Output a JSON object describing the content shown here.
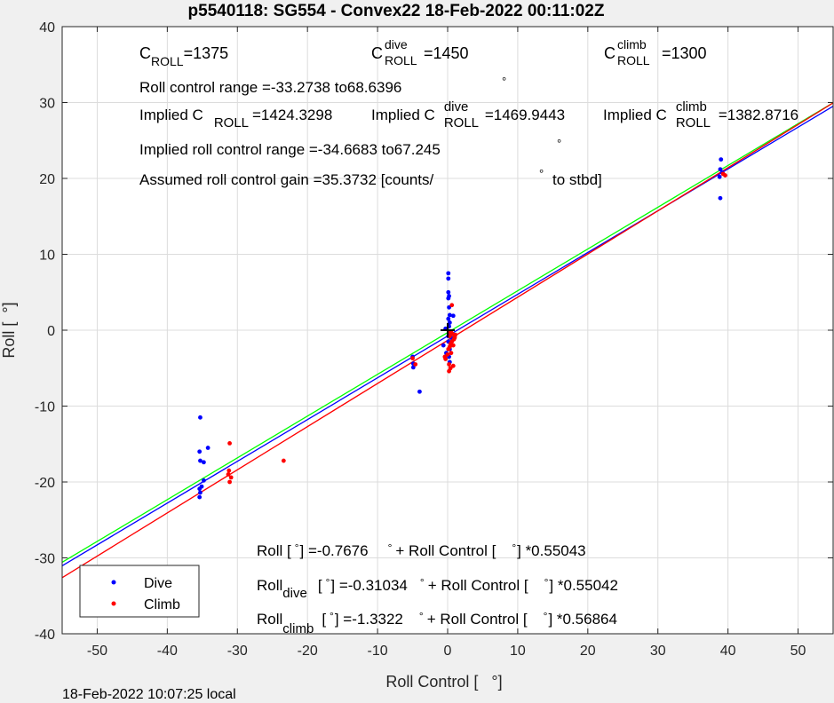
{
  "chart_data": {
    "type": "scatter",
    "title": "p5540118: SG554 - Convex22 18-Feb-2022 00:11:02Z",
    "xlabel": "Roll Control [   °]",
    "ylabel": "Roll [  °]",
    "xlim": [
      -55,
      55
    ],
    "ylim": [
      -40,
      40
    ],
    "xticks": [
      -50,
      -40,
      -30,
      -20,
      -10,
      0,
      10,
      20,
      30,
      40,
      50
    ],
    "yticks": [
      -40,
      -30,
      -20,
      -10,
      0,
      10,
      20,
      30,
      40
    ],
    "grid": true,
    "legend_position": "bottom-left",
    "series": [
      {
        "name": "Dive",
        "color": "#0000ff",
        "points": [
          [
            -35.3,
            -11.5
          ],
          [
            -35.4,
            -16.0
          ],
          [
            -35.3,
            -17.2
          ],
          [
            -34.8,
            -17.4
          ],
          [
            -34.2,
            -15.5
          ],
          [
            -34.8,
            -19.8
          ],
          [
            -35.1,
            -20.6
          ],
          [
            -35.4,
            -20.9
          ],
          [
            -35.3,
            -21.4
          ],
          [
            -35.4,
            -22.0
          ],
          [
            -5.0,
            -3.5
          ],
          [
            -4.9,
            -4.4
          ],
          [
            -4.9,
            -4.9
          ],
          [
            -4.0,
            -8.1
          ],
          [
            -0.6,
            -2.0
          ],
          [
            -0.2,
            -3.0
          ],
          [
            0.1,
            7.5
          ],
          [
            0.1,
            6.8
          ],
          [
            0.1,
            5.0
          ],
          [
            0.2,
            4.5
          ],
          [
            0.1,
            4.2
          ],
          [
            0.2,
            3.0
          ],
          [
            0.3,
            2.0
          ],
          [
            0.1,
            1.5
          ],
          [
            0.3,
            1.0
          ],
          [
            0.2,
            0.5
          ],
          [
            0.2,
            -0.5
          ],
          [
            0.1,
            -1.5
          ],
          [
            0.3,
            -2.5
          ],
          [
            0.2,
            -3.5
          ],
          [
            0.3,
            -4.2
          ],
          [
            0.8,
            1.9
          ],
          [
            -0.3,
            0.2
          ],
          [
            0.1,
            -0.8
          ],
          [
            0.5,
            -1.0
          ],
          [
            38.8,
            20.2
          ],
          [
            38.9,
            21.2
          ],
          [
            39.0,
            22.5
          ],
          [
            38.9,
            17.4
          ],
          [
            39.2,
            20.8
          ]
        ]
      },
      {
        "name": "Climb",
        "color": "#ff0000",
        "points": [
          [
            -31.1,
            -14.9
          ],
          [
            -31.2,
            -18.5
          ],
          [
            -31.3,
            -19.0
          ],
          [
            -30.9,
            -19.4
          ],
          [
            -31.1,
            -20.0
          ],
          [
            -23.4,
            -17.2
          ],
          [
            -5.0,
            -3.7
          ],
          [
            -4.6,
            -4.5
          ],
          [
            -0.3,
            -3.8
          ],
          [
            0.2,
            -4.5
          ],
          [
            0.5,
            -3.0
          ],
          [
            0.1,
            -2.5
          ],
          [
            0.8,
            -2.0
          ],
          [
            0.6,
            -1.5
          ],
          [
            0.9,
            -1.2
          ],
          [
            0.3,
            -0.8
          ],
          [
            1.1,
            -0.6
          ],
          [
            0.5,
            -0.3
          ],
          [
            0.2,
            -0.2
          ],
          [
            1.0,
            -1.0
          ],
          [
            0.4,
            -5.0
          ],
          [
            0.6,
            3.3
          ],
          [
            0.8,
            -4.7
          ],
          [
            0.0,
            -3.2
          ],
          [
            0.3,
            -2.2
          ],
          [
            0.7,
            -0.5
          ],
          [
            1.0,
            -0.9
          ],
          [
            0.4,
            -1.8
          ],
          [
            0.2,
            -5.4
          ],
          [
            -0.4,
            -3.5
          ],
          [
            39.6,
            20.4
          ],
          [
            39.3,
            20.6
          ]
        ]
      }
    ],
    "fit_lines": [
      {
        "name": "all",
        "color": "#0000ff",
        "intercept": -0.7676,
        "slope": 0.55043
      },
      {
        "name": "dive",
        "color": "#00ff00",
        "intercept": -0.31034,
        "slope": 0.55042
      },
      {
        "name": "climb",
        "color": "#ff0000",
        "intercept": -1.3322,
        "slope": 0.56864
      }
    ],
    "center_marker": {
      "x": 0,
      "y": 0
    }
  },
  "annotations": {
    "c_roll": "C",
    "c_roll_sub": "ROLL",
    "c_roll_val": "=1375",
    "c_roll_dive": "C",
    "c_roll_dive_sup": "dive",
    "c_roll_dive_sub": "ROLL",
    "c_roll_dive_val": "=1450",
    "c_roll_climb": "C",
    "c_roll_climb_sup": "climb",
    "c_roll_climb_sub": "ROLL",
    "c_roll_climb_val": "=1300",
    "range": "Roll control range =-33.2738 to68.6396",
    "range_deg": "°",
    "implied_c": "Implied C",
    "implied_c_sub": "ROLL",
    "implied_c_val": "=1424.3298",
    "implied_c_dive": "Implied C",
    "implied_c_dive_sup": "dive",
    "implied_c_dive_sub": "ROLL",
    "implied_c_dive_val": "=1469.9443",
    "implied_c_climb": "Implied C",
    "implied_c_climb_sup": "climb",
    "implied_c_climb_sub": "ROLL",
    "implied_c_climb_val": "=1382.8716",
    "implied_range": "Implied roll control range =-34.6683 to67.245",
    "implied_range_deg": "°",
    "gain": "Assumed roll control gain =35.3732 [counts/",
    "gain_deg": "°",
    "gain_end": "to stbd]",
    "eq_all_1": "Roll [",
    "eq_all_deg1": "°",
    "eq_all_2": "] =-0.7676",
    "eq_all_deg2": "°",
    "eq_all_3": "+ Roll Control [",
    "eq_all_deg3": "°",
    "eq_all_4": "] *0.55043",
    "eq_dive_1": "Roll",
    "eq_dive_sub": "dive",
    "eq_dive_2": "[",
    "eq_dive_deg1": "°",
    "eq_dive_3": "] =-0.31034",
    "eq_dive_deg2": "°",
    "eq_dive_4": "+ Roll Control [",
    "eq_dive_deg3": "°",
    "eq_dive_5": "] *0.55042",
    "eq_climb_1": "Roll",
    "eq_climb_sub": "climb",
    "eq_climb_2": "[",
    "eq_climb_deg1": "°",
    "eq_climb_3": "] =-1.3322",
    "eq_climb_deg2": "°",
    "eq_climb_4": "+ Roll Control [",
    "eq_climb_deg3": "°",
    "eq_climb_5": "] *0.56864"
  },
  "footer": "18-Feb-2022 10:07:25 local"
}
